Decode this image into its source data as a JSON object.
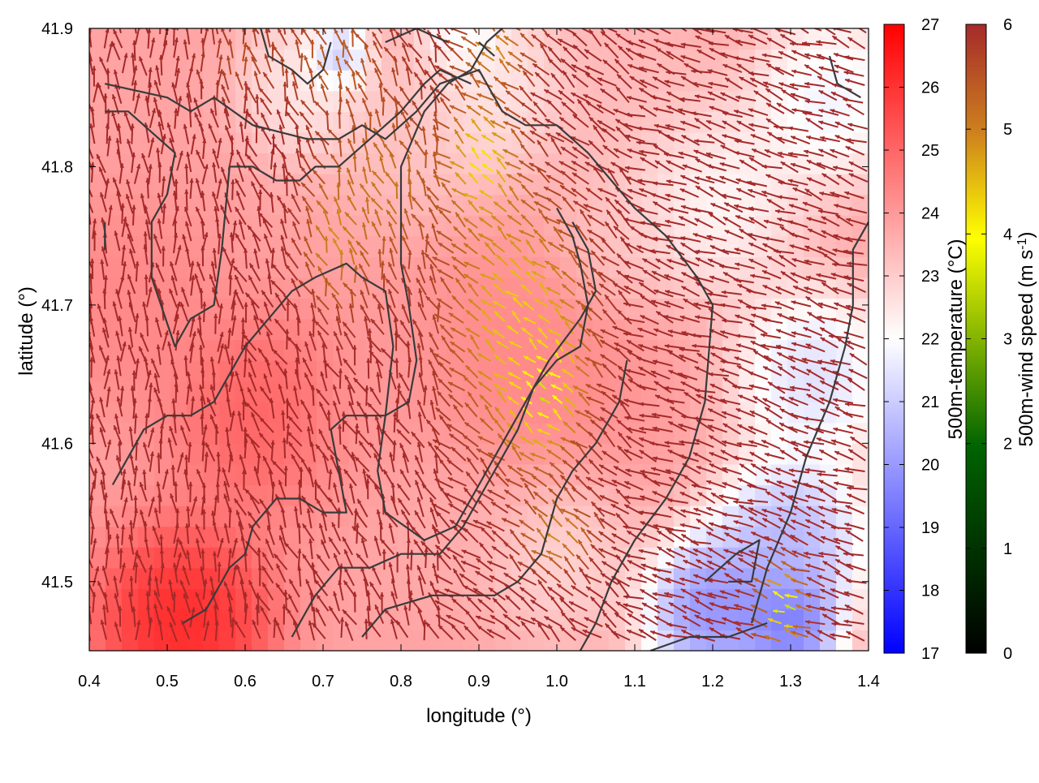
{
  "chart_data": {
    "type": "heatmap",
    "title": "",
    "xlabel": "longitude (°)",
    "ylabel": "latitude (°)",
    "xlim": [
      0.4,
      1.4
    ],
    "ylim": [
      41.45,
      41.9
    ],
    "x_ticks": [
      "0.4",
      "0.5",
      "0.6",
      "0.7",
      "0.8",
      "0.9",
      "1.0",
      "1.1",
      "1.2",
      "1.3",
      "1.4"
    ],
    "y_ticks": [
      "41.5",
      "41.6",
      "41.7",
      "41.8",
      "41.9"
    ],
    "grid": false,
    "layers": {
      "field": "500m-temperature (°C)",
      "vectors": "500m-wind speed",
      "contours": "terrain contour lines"
    },
    "colorbars": [
      {
        "label": "500m-temperature (°C)",
        "range": [
          17,
          27
        ],
        "ticks": [
          "17",
          "18",
          "19",
          "20",
          "21",
          "22",
          "23",
          "24",
          "25",
          "26",
          "27"
        ],
        "colors": [
          "#0000ff",
          "#ffffff",
          "#ff0000"
        ]
      },
      {
        "label_main": "500m-wind speed (m s",
        "label_sup": "-1",
        "label_end": ")",
        "range": [
          0,
          6
        ],
        "ticks": [
          "0",
          "1",
          "2",
          "3",
          "4",
          "5",
          "6"
        ],
        "colors": [
          "#000000",
          "#006400",
          "#ffff00",
          "#cd7f1e",
          "#a52a2a"
        ]
      }
    ],
    "temperature_centers": [
      {
        "lon": 0.52,
        "lat": 41.47,
        "t": 27.0,
        "r": 0.09
      },
      {
        "lon": 0.62,
        "lat": 41.62,
        "t": 25.5,
        "r": 0.09
      },
      {
        "lon": 0.45,
        "lat": 41.7,
        "t": 24.5,
        "r": 0.1
      },
      {
        "lon": 0.95,
        "lat": 41.65,
        "t": 24.5,
        "r": 0.12
      },
      {
        "lon": 0.78,
        "lat": 41.62,
        "t": 24.0,
        "r": 0.1
      },
      {
        "lon": 0.82,
        "lat": 41.82,
        "t": 23.0,
        "r": 0.08
      },
      {
        "lon": 0.68,
        "lat": 41.86,
        "t": 22.0,
        "r": 0.07
      },
      {
        "lon": 0.92,
        "lat": 41.86,
        "t": 22.0,
        "r": 0.08
      },
      {
        "lon": 1.1,
        "lat": 41.85,
        "t": 23.2,
        "r": 0.1
      },
      {
        "lon": 1.08,
        "lat": 41.75,
        "t": 23.0,
        "r": 0.07
      },
      {
        "lon": 1.2,
        "lat": 41.78,
        "t": 21.5,
        "r": 0.09
      },
      {
        "lon": 1.35,
        "lat": 41.85,
        "t": 21.0,
        "r": 0.08
      },
      {
        "lon": 1.33,
        "lat": 41.65,
        "t": 20.5,
        "r": 0.08
      },
      {
        "lon": 1.3,
        "lat": 41.53,
        "t": 19.5,
        "r": 0.08
      },
      {
        "lon": 1.2,
        "lat": 41.48,
        "t": 18.5,
        "r": 0.07
      },
      {
        "lon": 1.3,
        "lat": 41.47,
        "t": 18.0,
        "r": 0.05
      },
      {
        "lon": 1.0,
        "lat": 41.52,
        "t": 22.5,
        "r": 0.08
      },
      {
        "lon": 0.72,
        "lat": 41.88,
        "t": 19.5,
        "r": 0.03
      },
      {
        "lon": 0.88,
        "lat": 41.9,
        "t": 21.0,
        "r": 0.04
      },
      {
        "lon": 0.86,
        "lat": 41.55,
        "t": 23.5,
        "r": 0.08
      }
    ],
    "calm_zones": [
      {
        "lon": 0.985,
        "lat": 41.64,
        "rx": 0.055,
        "ry": 0.055,
        "speed": 1.8
      },
      {
        "lon": 0.955,
        "lat": 41.69,
        "rx": 0.09,
        "ry": 0.09,
        "speed": 3.5
      },
      {
        "lon": 0.91,
        "lat": 41.8,
        "rx": 0.05,
        "ry": 0.05,
        "speed": 3.2
      },
      {
        "lon": 0.78,
        "lat": 41.78,
        "rx": 0.08,
        "ry": 0.07,
        "speed": 4.6
      },
      {
        "lon": 0.72,
        "lat": 41.74,
        "rx": 0.04,
        "ry": 0.05,
        "speed": 4.3
      },
      {
        "lon": 0.72,
        "lat": 41.87,
        "rx": 0.08,
        "ry": 0.04,
        "speed": 5.0
      },
      {
        "lon": 0.93,
        "lat": 41.88,
        "rx": 0.05,
        "ry": 0.03,
        "speed": 4.3
      },
      {
        "lon": 1.01,
        "lat": 41.53,
        "rx": 0.05,
        "ry": 0.03,
        "speed": 4.3
      },
      {
        "lon": 1.3,
        "lat": 41.48,
        "rx": 0.03,
        "ry": 0.03,
        "speed": 2.5
      },
      {
        "lon": 0.6,
        "lat": 41.87,
        "rx": 0.06,
        "ry": 0.03,
        "speed": 5.4
      }
    ],
    "contours": [
      [
        [
          0.42,
          41.86
        ],
        [
          0.5,
          41.85
        ],
        [
          0.53,
          41.84
        ],
        [
          0.56,
          41.85
        ],
        [
          0.61,
          41.83
        ],
        [
          0.68,
          41.82
        ],
        [
          0.72,
          41.82
        ],
        [
          0.75,
          41.83
        ],
        [
          0.78,
          41.82
        ],
        [
          0.82,
          41.84
        ],
        [
          0.85,
          41.86
        ],
        [
          0.9,
          41.87
        ],
        [
          0.93,
          41.84
        ],
        [
          0.96,
          41.83
        ],
        [
          1.0,
          41.83
        ],
        [
          1.04,
          41.81
        ],
        [
          1.07,
          41.79
        ],
        [
          1.1,
          41.77
        ],
        [
          1.14,
          41.75
        ],
        [
          1.18,
          41.72
        ],
        [
          1.2,
          41.7
        ],
        [
          1.19,
          41.63
        ],
        [
          1.17,
          41.59
        ],
        [
          1.14,
          41.56
        ],
        [
          1.1,
          41.53
        ],
        [
          1.07,
          41.5
        ],
        [
          1.05,
          41.47
        ],
        [
          1.03,
          41.45
        ]
      ],
      [
        [
          0.42,
          41.84
        ],
        [
          0.45,
          41.84
        ],
        [
          0.49,
          41.82
        ],
        [
          0.51,
          41.81
        ],
        [
          0.5,
          41.78
        ],
        [
          0.48,
          41.76
        ],
        [
          0.48,
          41.72
        ],
        [
          0.51,
          41.67
        ],
        [
          0.53,
          41.69
        ],
        [
          0.56,
          41.7
        ],
        [
          0.57,
          41.74
        ],
        [
          0.58,
          41.8
        ],
        [
          0.61,
          41.8
        ],
        [
          0.64,
          41.79
        ],
        [
          0.67,
          41.79
        ],
        [
          0.69,
          41.8
        ],
        [
          0.72,
          41.8
        ],
        [
          0.76,
          41.82
        ],
        [
          0.8,
          41.84
        ],
        [
          0.83,
          41.86
        ],
        [
          0.85,
          41.87
        ],
        [
          0.89,
          41.86
        ]
      ],
      [
        [
          0.52,
          41.47
        ],
        [
          0.55,
          41.48
        ],
        [
          0.58,
          41.51
        ],
        [
          0.6,
          41.52
        ],
        [
          0.61,
          41.54
        ],
        [
          0.64,
          41.56
        ],
        [
          0.67,
          41.56
        ],
        [
          0.7,
          41.55
        ],
        [
          0.73,
          41.55
        ],
        [
          0.72,
          41.58
        ],
        [
          0.71,
          41.61
        ],
        [
          0.73,
          41.62
        ],
        [
          0.78,
          41.62
        ],
        [
          0.81,
          41.63
        ],
        [
          0.82,
          41.66
        ],
        [
          0.81,
          41.7
        ],
        [
          0.8,
          41.73
        ],
        [
          0.8,
          41.77
        ],
        [
          0.8,
          41.8
        ],
        [
          0.83,
          41.84
        ],
        [
          0.86,
          41.86
        ],
        [
          0.89,
          41.87
        ],
        [
          0.91,
          41.89
        ],
        [
          0.93,
          41.9
        ]
      ],
      [
        [
          0.43,
          41.57
        ],
        [
          0.45,
          41.59
        ],
        [
          0.47,
          41.61
        ],
        [
          0.5,
          41.62
        ],
        [
          0.53,
          41.62
        ],
        [
          0.56,
          41.63
        ],
        [
          0.58,
          41.65
        ],
        [
          0.6,
          41.67
        ],
        [
          0.63,
          41.69
        ],
        [
          0.66,
          41.71
        ],
        [
          0.69,
          41.72
        ],
        [
          0.73,
          41.73
        ],
        [
          0.75,
          41.72
        ],
        [
          0.78,
          41.71
        ],
        [
          0.79,
          41.67
        ],
        [
          0.78,
          41.62
        ],
        [
          0.77,
          41.58
        ],
        [
          0.78,
          41.55
        ],
        [
          0.83,
          41.53
        ],
        [
          0.87,
          41.54
        ],
        [
          0.9,
          41.57
        ],
        [
          0.93,
          41.6
        ],
        [
          0.96,
          41.63
        ],
        [
          0.99,
          41.66
        ],
        [
          1.03,
          41.69
        ],
        [
          1.05,
          41.71
        ],
        [
          1.04,
          41.74
        ],
        [
          1.02,
          41.76
        ]
      ],
      [
        [
          0.66,
          41.46
        ],
        [
          0.69,
          41.49
        ],
        [
          0.72,
          41.51
        ],
        [
          0.76,
          41.51
        ],
        [
          0.8,
          41.52
        ],
        [
          0.85,
          41.52
        ],
        [
          0.88,
          41.54
        ],
        [
          0.91,
          41.57
        ],
        [
          0.93,
          41.59
        ],
        [
          0.95,
          41.61
        ],
        [
          0.97,
          41.64
        ],
        [
          1.0,
          41.66
        ],
        [
          1.03,
          41.67
        ],
        [
          1.04,
          41.7
        ],
        [
          1.03,
          41.73
        ],
        [
          1.02,
          41.75
        ],
        [
          1.0,
          41.77
        ]
      ],
      [
        [
          0.75,
          41.46
        ],
        [
          0.78,
          41.48
        ],
        [
          0.84,
          41.49
        ],
        [
          0.88,
          41.49
        ],
        [
          0.92,
          41.49
        ],
        [
          0.95,
          41.5
        ],
        [
          0.98,
          41.52
        ],
        [
          1.0,
          41.56
        ],
        [
          1.02,
          41.58
        ],
        [
          1.05,
          41.6
        ],
        [
          1.08,
          41.63
        ],
        [
          1.09,
          41.66
        ]
      ],
      [
        [
          1.12,
          41.45
        ],
        [
          1.17,
          41.46
        ],
        [
          1.22,
          41.46
        ],
        [
          1.27,
          41.47
        ]
      ],
      [
        [
          1.25,
          41.47
        ],
        [
          1.27,
          41.51
        ],
        [
          1.3,
          41.55
        ],
        [
          1.32,
          41.59
        ],
        [
          1.35,
          41.63
        ],
        [
          1.37,
          41.67
        ],
        [
          1.38,
          41.7
        ],
        [
          1.38,
          41.74
        ],
        [
          1.4,
          41.76
        ]
      ],
      [
        [
          1.19,
          41.5
        ],
        [
          1.21,
          41.51
        ],
        [
          1.23,
          41.52
        ],
        [
          1.26,
          41.53
        ],
        [
          1.25,
          41.5
        ],
        [
          1.22,
          41.5
        ]
      ],
      [
        [
          0.62,
          41.9
        ],
        [
          0.63,
          41.88
        ],
        [
          0.66,
          41.87
        ],
        [
          0.68,
          41.86
        ],
        [
          0.7,
          41.87
        ],
        [
          0.71,
          41.89
        ]
      ],
      [
        [
          0.78,
          41.89
        ],
        [
          0.82,
          41.9
        ],
        [
          0.86,
          41.89
        ]
      ],
      [
        [
          0.9,
          41.89
        ],
        [
          0.92,
          41.88
        ]
      ],
      [
        [
          1.35,
          41.88
        ],
        [
          1.36,
          41.86
        ],
        [
          1.39,
          41.85
        ]
      ],
      [
        [
          0.42,
          41.74
        ],
        [
          0.42,
          41.76
        ]
      ]
    ]
  }
}
